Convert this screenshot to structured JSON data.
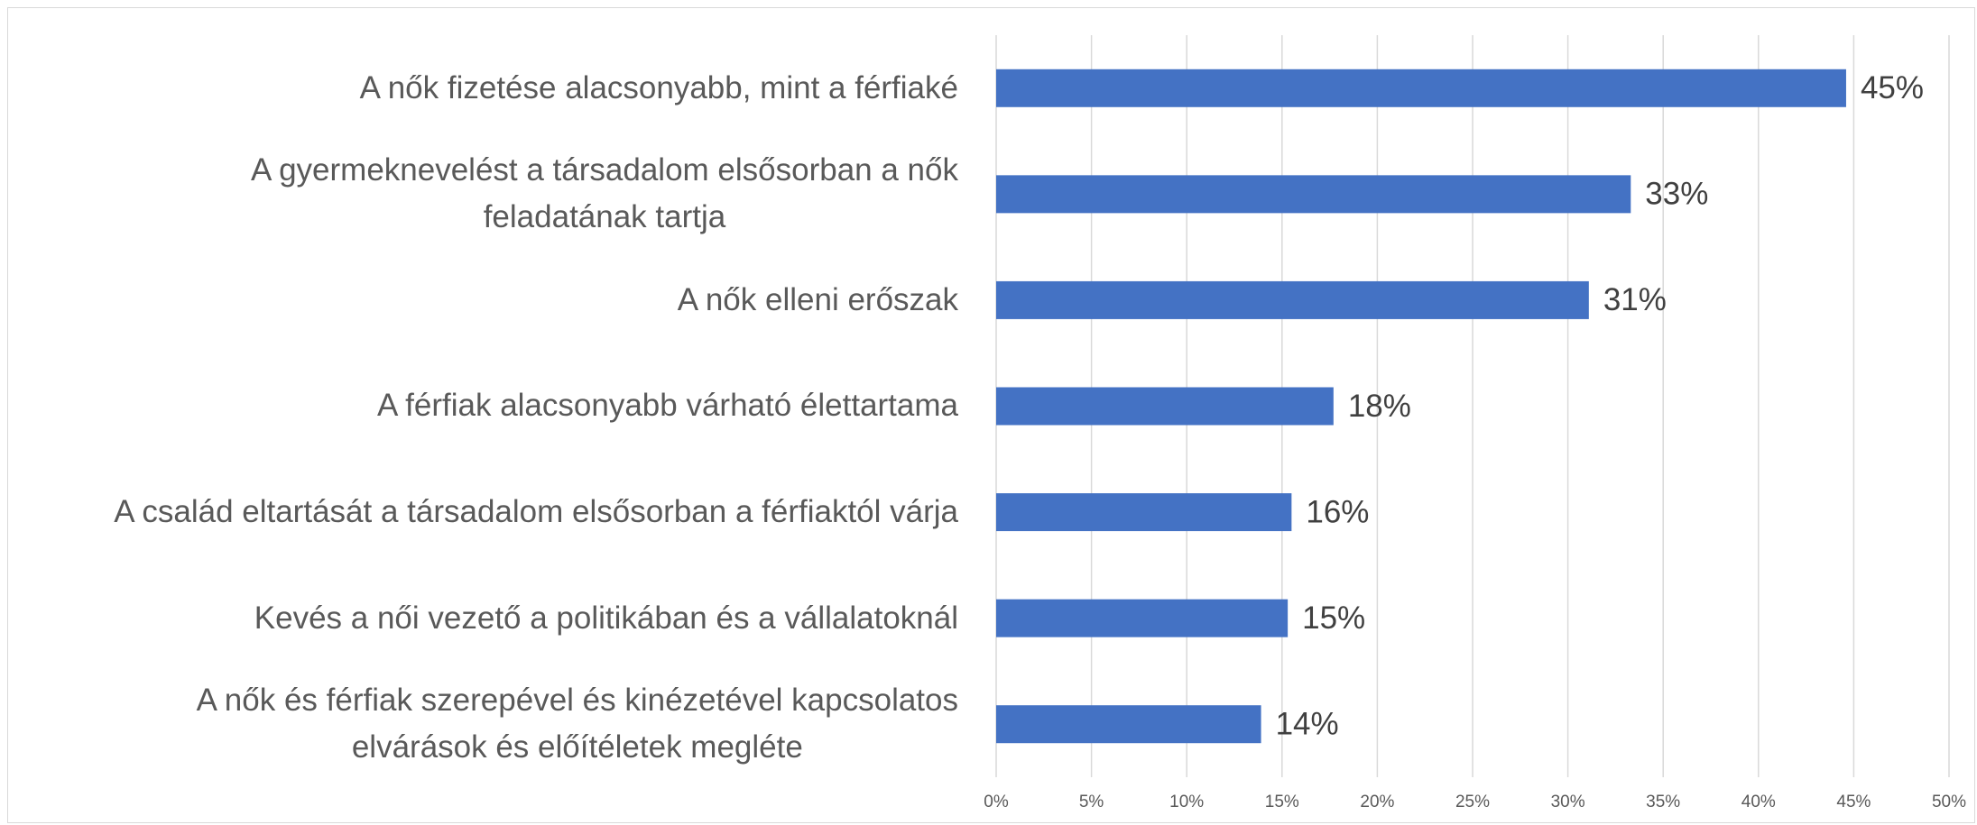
{
  "chart_data": {
    "type": "bar",
    "orientation": "horizontal",
    "categories": [
      "A nők fizetése alacsonyabb, mint a férfiaké",
      "A gyermeknevelést a társadalom elsősorban a nők\nfeladatának tartja",
      "A nők elleni erőszak",
      "A férfiak alacsonyabb várható élettartama",
      "A család eltartását a társadalom elsősorban a férfiaktól várja",
      "Kevés a női vezető a politikában és a vállalatoknál",
      "A nők és férfiak szerepével és kinézetével kapcsolatos\nelvárások és előítéletek megléte"
    ],
    "values": [
      44.6,
      33.3,
      31.1,
      17.7,
      15.5,
      15.3,
      13.9
    ],
    "value_labels": [
      "45%",
      "33%",
      "31%",
      "18%",
      "16%",
      "15%",
      "14%"
    ],
    "color": "#4472c4",
    "xlim": [
      0,
      50
    ],
    "xticks": [
      {
        "value": 0,
        "label": "0%"
      },
      {
        "value": 5,
        "label": "5%"
      },
      {
        "value": 10,
        "label": "10%"
      },
      {
        "value": 15,
        "label": "15%"
      },
      {
        "value": 20,
        "label": "20%"
      },
      {
        "value": 25,
        "label": "25%"
      },
      {
        "value": 30,
        "label": "30%"
      },
      {
        "value": 35,
        "label": "35%"
      },
      {
        "value": 40,
        "label": "40%"
      },
      {
        "value": 45,
        "label": "45%"
      },
      {
        "value": 50,
        "label": "50%"
      }
    ],
    "grid": true
  }
}
